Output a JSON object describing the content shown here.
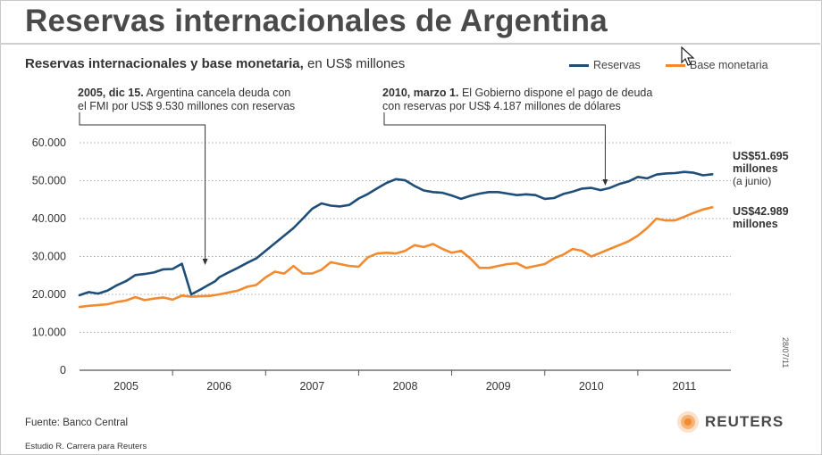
{
  "header": {
    "title": "Reservas internacionales de Argentina",
    "subtitle_bold": "Reservas internacionales y base monetaria,",
    "subtitle_rest": " en US$ millones"
  },
  "annotations": [
    {
      "bold": "2005, dic 15.",
      "text1": " Argentina cancela deuda con",
      "text2": "el FMI por US$ 9.530 millones con reservas"
    },
    {
      "bold": "2010, marzo 1.",
      "text1": " El Gobierno dispone el pago de deuda",
      "text2": "con reservas por US$ 4.187 millones de dólares"
    }
  ],
  "end_labels": {
    "reservas_value": "US$51.695",
    "reservas_unit": "millones",
    "reservas_note": "(a junio)",
    "base_value": "US$42.989",
    "base_unit": "millones"
  },
  "footer": {
    "source": "Fuente: Banco Central",
    "credit": "Estudio R. Carrera para Reuters",
    "brand": "REUTERS",
    "code": "28/07/11"
  },
  "chart_data": {
    "type": "line",
    "title": "Reservas internacionales y base monetaria, en US$ millones",
    "xlabel": "",
    "ylabel": "",
    "ylim": [
      0,
      60000
    ],
    "yticks": [
      "0",
      "10.000",
      "20.000",
      "30.000",
      "40.000",
      "50.000",
      "60.000"
    ],
    "ytick_values": [
      0,
      10000,
      20000,
      30000,
      40000,
      50000,
      60000
    ],
    "xticks": [
      "2005",
      "2006",
      "2007",
      "2008",
      "2009",
      "2010",
      "2011"
    ],
    "xtick_values": [
      2005,
      2006,
      2007,
      2008,
      2009,
      2010,
      2011
    ],
    "xlim": [
      2004.5,
      2011.5
    ],
    "grid": true,
    "legend_position": "top-right",
    "series": [
      {
        "name": "Reservas",
        "color": "#1f4e79",
        "x": [
          2004.5,
          2004.6,
          2004.7,
          2004.8,
          2004.9,
          2005.0,
          2005.1,
          2005.2,
          2005.3,
          2005.4,
          2005.5,
          2005.6,
          2005.7,
          2005.8,
          2005.85,
          2005.96,
          2006.0,
          2006.1,
          2006.2,
          2006.3,
          2006.4,
          2006.5,
          2006.6,
          2006.7,
          2006.8,
          2006.9,
          2007.0,
          2007.1,
          2007.2,
          2007.3,
          2007.4,
          2007.5,
          2007.6,
          2007.7,
          2007.8,
          2007.9,
          2008.0,
          2008.1,
          2008.2,
          2008.3,
          2008.4,
          2008.5,
          2008.6,
          2008.7,
          2008.8,
          2008.9,
          2009.0,
          2009.1,
          2009.2,
          2009.3,
          2009.4,
          2009.5,
          2009.6,
          2009.7,
          2009.8,
          2009.9,
          2010.0,
          2010.1,
          2010.2,
          2010.3,
          2010.4,
          2010.5,
          2010.6,
          2010.7,
          2010.8,
          2010.9,
          2011.0,
          2011.1,
          2011.2,
          2011.3
        ],
        "values": [
          19800,
          20600,
          20200,
          21000,
          22400,
          23500,
          25100,
          25400,
          25800,
          26600,
          26700,
          28100,
          20000,
          21300,
          22000,
          23500,
          24500,
          25800,
          27000,
          28300,
          29500,
          31500,
          33500,
          35500,
          37500,
          40000,
          42600,
          44000,
          43400,
          43200,
          43600,
          45300,
          46500,
          48000,
          49400,
          50400,
          50100,
          48600,
          47400,
          47000,
          46800,
          46100,
          45200,
          46000,
          46600,
          47000,
          47000,
          46600,
          46200,
          46400,
          46200,
          45200,
          45400,
          46500,
          47100,
          47900,
          48100,
          47500,
          48100,
          49100,
          49800,
          51000,
          50600,
          51600,
          51900,
          52000,
          52300,
          52100,
          51400,
          51695
        ]
      },
      {
        "name": "Base monetaria",
        "color": "#f28a30",
        "x": [
          2004.5,
          2004.6,
          2004.7,
          2004.8,
          2004.9,
          2005.0,
          2005.1,
          2005.2,
          2005.3,
          2005.4,
          2005.5,
          2005.6,
          2005.7,
          2005.8,
          2005.9,
          2006.0,
          2006.1,
          2006.2,
          2006.3,
          2006.4,
          2006.5,
          2006.6,
          2006.7,
          2006.8,
          2006.9,
          2007.0,
          2007.1,
          2007.2,
          2007.3,
          2007.4,
          2007.5,
          2007.6,
          2007.7,
          2007.8,
          2007.9,
          2008.0,
          2008.1,
          2008.2,
          2008.3,
          2008.4,
          2008.5,
          2008.6,
          2008.7,
          2008.8,
          2008.9,
          2009.0,
          2009.1,
          2009.2,
          2009.3,
          2009.4,
          2009.5,
          2009.6,
          2009.7,
          2009.8,
          2009.9,
          2010.0,
          2010.1,
          2010.2,
          2010.3,
          2010.4,
          2010.5,
          2010.6,
          2010.7,
          2010.8,
          2010.9,
          2011.0,
          2011.1,
          2011.2,
          2011.3
        ],
        "values": [
          16700,
          17000,
          17200,
          17400,
          18000,
          18400,
          19300,
          18500,
          18900,
          19200,
          18600,
          19700,
          19400,
          19500,
          19600,
          20000,
          20500,
          21000,
          22000,
          22500,
          24500,
          26000,
          25500,
          27500,
          25500,
          25500,
          26500,
          28500,
          28000,
          27500,
          27300,
          29800,
          30800,
          31000,
          30800,
          31500,
          33000,
          32500,
          33300,
          32000,
          31000,
          31500,
          29500,
          27000,
          27000,
          27500,
          28000,
          28200,
          27000,
          27500,
          28000,
          29500,
          30500,
          32000,
          31500,
          30000,
          31000,
          32000,
          33000,
          34000,
          35500,
          37500,
          40000,
          39500,
          39500,
          40500,
          41500,
          42400,
          42989
        ]
      }
    ]
  }
}
